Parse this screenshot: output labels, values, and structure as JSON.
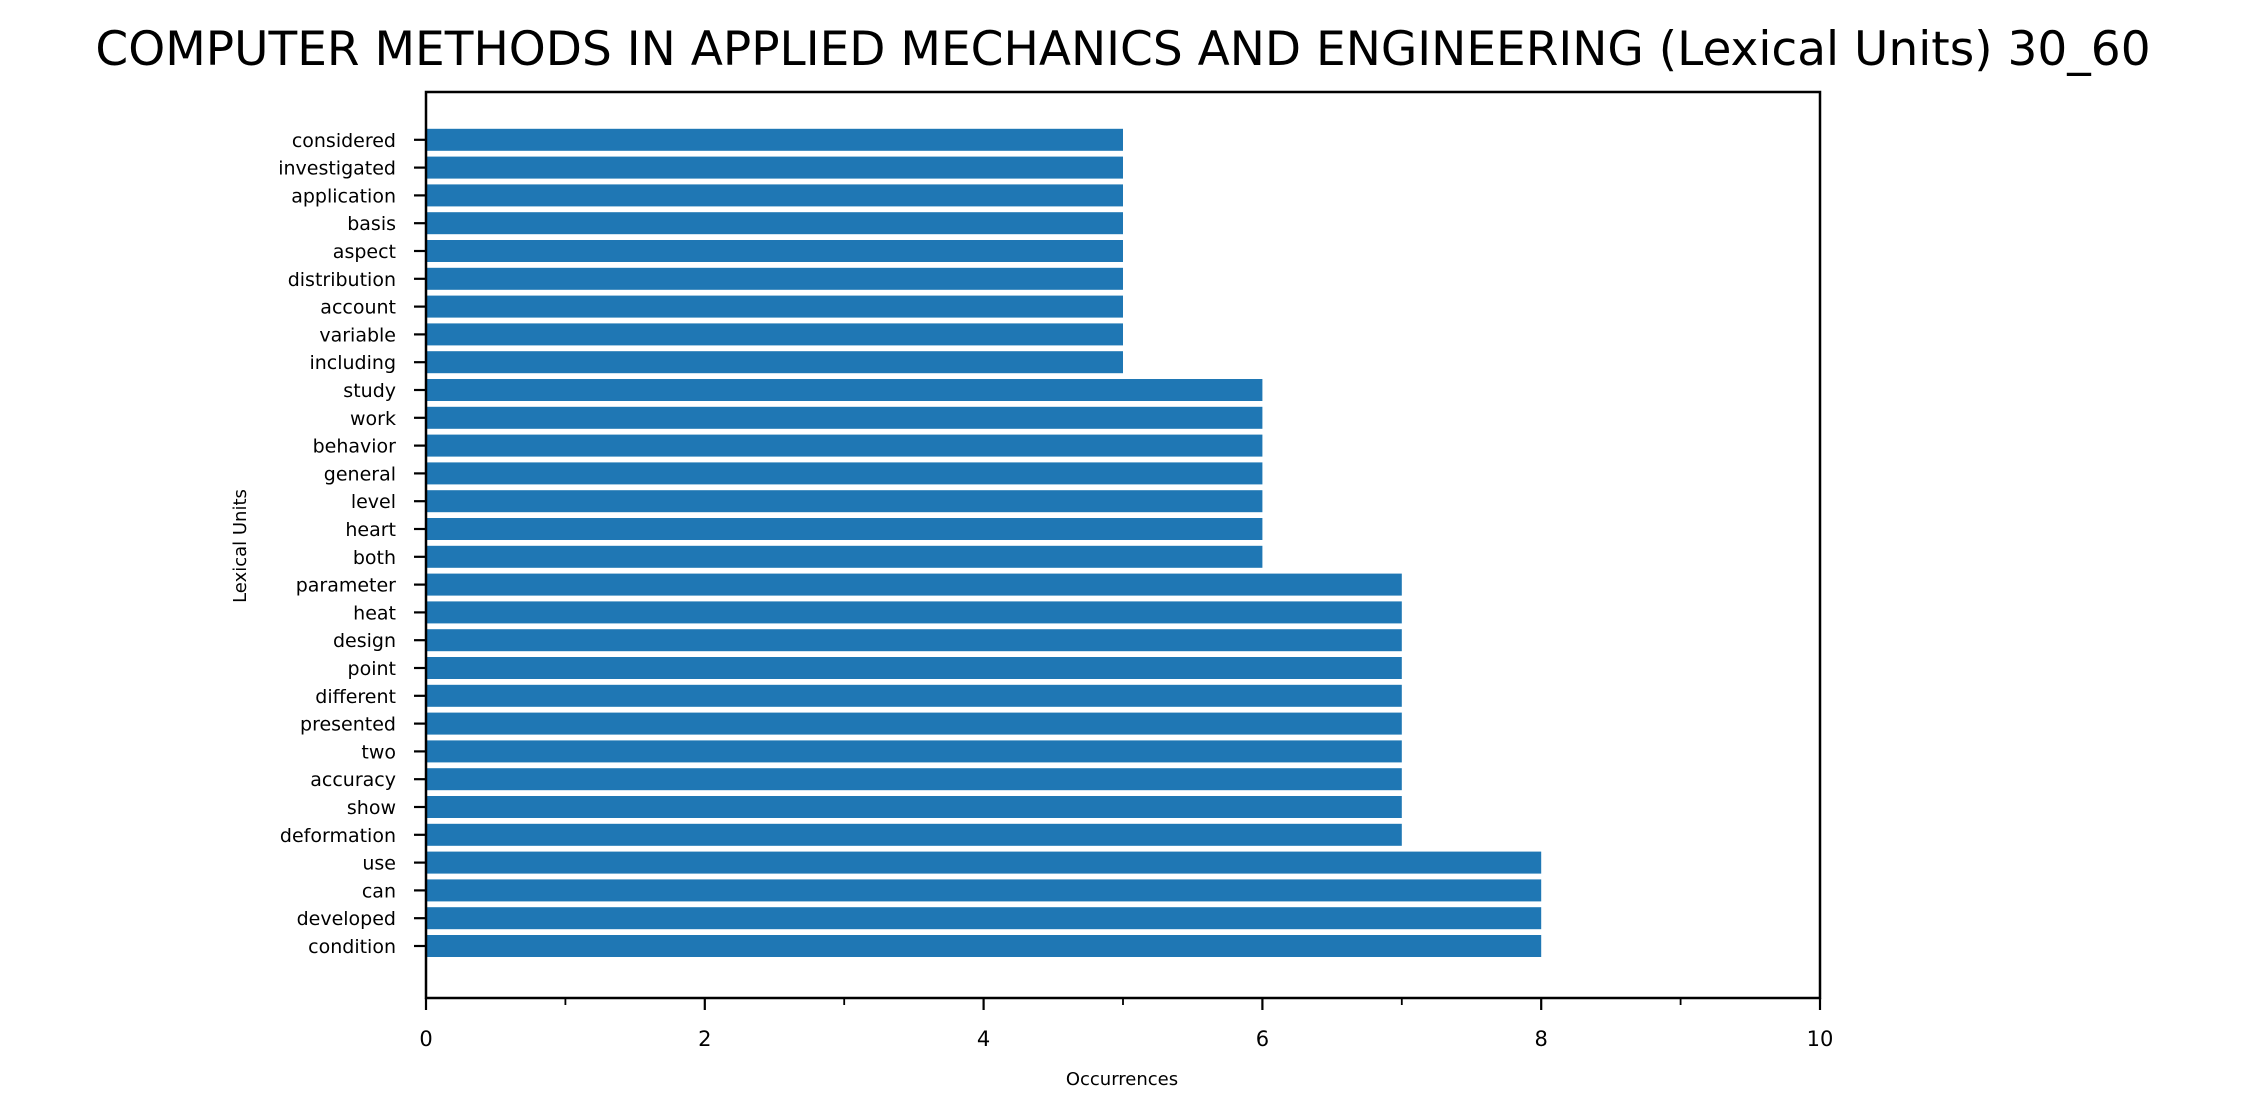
{
  "chart_data": {
    "type": "bar",
    "orientation": "horizontal",
    "title": "COMPUTER METHODS IN APPLIED MECHANICS AND ENGINEERING (Lexical Units) 30_60",
    "xlabel": "Occurrences",
    "ylabel": "Lexical Units",
    "xlim": [
      0,
      10
    ],
    "xticks": [
      "0",
      "2",
      "4",
      "6",
      "8",
      "10"
    ],
    "grid": false,
    "bar_color": "#1f77b4",
    "categories": [
      "condition",
      "developed",
      "can",
      "use",
      "deformation",
      "show",
      "accuracy",
      "two",
      "presented",
      "different",
      "point",
      "design",
      "heat",
      "parameter",
      "both",
      "heart",
      "level",
      "general",
      "behavior",
      "work",
      "study",
      "including",
      "variable",
      "account",
      "distribution",
      "aspect",
      "basis",
      "application",
      "investigated",
      "considered"
    ],
    "values": [
      8,
      8,
      8,
      8,
      7,
      7,
      7,
      7,
      7,
      7,
      7,
      7,
      7,
      7,
      6,
      6,
      6,
      6,
      6,
      6,
      6,
      5,
      5,
      5,
      5,
      5,
      5,
      5,
      5,
      5
    ]
  }
}
